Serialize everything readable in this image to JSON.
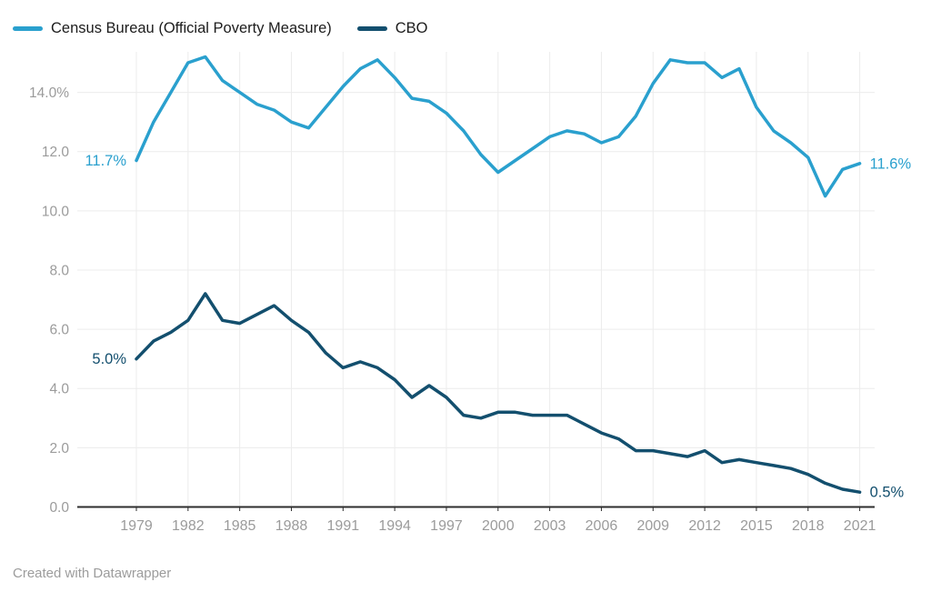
{
  "legend": {
    "items": [
      {
        "label": "Census Bureau (Official Poverty Measure)",
        "color": "#2aa0ce"
      },
      {
        "label": "CBO",
        "color": "#134f6e"
      }
    ]
  },
  "footer": {
    "attribution": "Created with Datawrapper"
  },
  "colors": {
    "background": "#ffffff",
    "grid": "#ececec",
    "axis_text": "#9b9b9b",
    "baseline": "#2e2e2e"
  },
  "chart_data": {
    "type": "line",
    "title": "",
    "xlabel": "",
    "ylabel": "",
    "grid": true,
    "legend_position": "top-left",
    "ylim": [
      0,
      15.4
    ],
    "y_ticks": [
      0,
      2,
      4,
      6,
      8,
      10,
      12,
      14
    ],
    "y_tick_labels": [
      "0.0",
      "2.0",
      "4.0",
      "6.0",
      "8.0",
      "10.0",
      "12.0",
      "14.0%"
    ],
    "x_ticks": [
      1979,
      1982,
      1985,
      1988,
      1991,
      1994,
      1997,
      2000,
      2003,
      2006,
      2009,
      2012,
      2015,
      2018,
      2021
    ],
    "x_tick_labels": [
      "1979",
      "1982",
      "1985",
      "1988",
      "1991",
      "1994",
      "1997",
      "2000",
      "2003",
      "2006",
      "2009",
      "2012",
      "2015",
      "2018",
      "2021"
    ],
    "x": [
      1979,
      1980,
      1981,
      1982,
      1983,
      1984,
      1985,
      1986,
      1987,
      1988,
      1989,
      1990,
      1991,
      1992,
      1993,
      1994,
      1995,
      1996,
      1997,
      1998,
      1999,
      2000,
      2001,
      2002,
      2003,
      2004,
      2005,
      2006,
      2007,
      2008,
      2009,
      2010,
      2011,
      2012,
      2013,
      2014,
      2015,
      2016,
      2017,
      2018,
      2019,
      2020,
      2021
    ],
    "series": [
      {
        "name": "Census Bureau (Official Poverty Measure)",
        "color": "#2aa0ce",
        "start_label": "11.7%",
        "end_label": "11.6%",
        "values": [
          11.7,
          13.0,
          14.0,
          15.0,
          15.2,
          14.4,
          14.0,
          13.6,
          13.4,
          13.0,
          12.8,
          13.5,
          14.2,
          14.8,
          15.1,
          14.5,
          13.8,
          13.7,
          13.3,
          12.7,
          11.9,
          11.3,
          11.7,
          12.1,
          12.5,
          12.7,
          12.6,
          12.3,
          12.5,
          13.2,
          14.3,
          15.1,
          15.0,
          15.0,
          14.5,
          14.8,
          13.5,
          12.7,
          12.3,
          11.8,
          10.5,
          11.4,
          11.6
        ]
      },
      {
        "name": "CBO",
        "color": "#134f6e",
        "start_label": "5.0%",
        "end_label": "0.5%",
        "values": [
          5.0,
          5.6,
          5.9,
          6.3,
          7.2,
          6.3,
          6.2,
          6.5,
          6.8,
          6.3,
          5.9,
          5.2,
          4.7,
          4.9,
          4.7,
          4.3,
          3.7,
          4.1,
          3.7,
          3.1,
          3.0,
          3.2,
          3.2,
          3.1,
          3.1,
          3.1,
          2.8,
          2.5,
          2.3,
          1.9,
          1.9,
          1.8,
          1.7,
          1.9,
          1.5,
          1.6,
          1.5,
          1.4,
          1.3,
          1.1,
          0.8,
          0.6,
          0.5
        ]
      }
    ]
  }
}
